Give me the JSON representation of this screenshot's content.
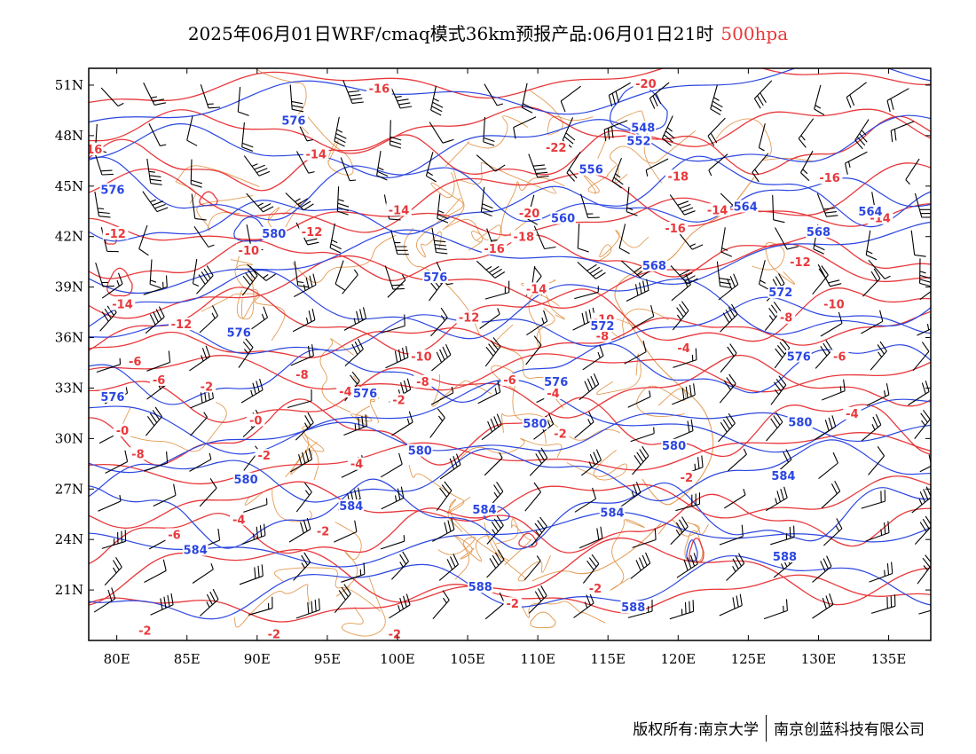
{
  "title": {
    "main": "2025年06月01日WRF/cmaq模式36km预报产品:06月01日21时",
    "level": "500hpa",
    "level_color": "#e8383b"
  },
  "footer": {
    "left": "版权所有:南京大学",
    "right": "南京创蓝科技有限公司"
  },
  "colors": {
    "height_contour": "#2b46e0",
    "temperature_contour": "#e8383b",
    "boundaries": "#e39b54",
    "wind_barbs": "#000000"
  },
  "map": {
    "lon_range": [
      78,
      138
    ],
    "lat_range": [
      18,
      52
    ],
    "lon_ticks": [
      "80E",
      "85E",
      "90E",
      "95E",
      "100E",
      "105E",
      "110E",
      "115E",
      "120E",
      "125E",
      "130E",
      "135E"
    ],
    "lon_values": [
      80,
      85,
      90,
      95,
      100,
      105,
      110,
      115,
      120,
      125,
      130,
      135
    ],
    "lat_ticks": [
      "21N",
      "24N",
      "27N",
      "30N",
      "33N",
      "36N",
      "39N",
      "42N",
      "45N",
      "48N",
      "51N"
    ],
    "lat_values": [
      21,
      24,
      27,
      30,
      33,
      36,
      39,
      42,
      45,
      48,
      51
    ]
  },
  "height_labels": [
    {
      "text": "548",
      "lon": 117.5,
      "lat": 48.4
    },
    {
      "text": "552",
      "lon": 117.2,
      "lat": 47.6
    },
    {
      "text": "556",
      "lon": 113.8,
      "lat": 45.9
    },
    {
      "text": "560",
      "lon": 111.8,
      "lat": 43.0
    },
    {
      "text": "564",
      "lon": 124.8,
      "lat": 43.7
    },
    {
      "text": "564",
      "lon": 133.7,
      "lat": 43.4
    },
    {
      "text": "568",
      "lon": 118.3,
      "lat": 40.2
    },
    {
      "text": "568",
      "lon": 130.0,
      "lat": 42.2
    },
    {
      "text": "572",
      "lon": 127.3,
      "lat": 38.6
    },
    {
      "text": "572",
      "lon": 114.6,
      "lat": 36.6
    },
    {
      "text": "576",
      "lon": 92.6,
      "lat": 48.8
    },
    {
      "text": "576",
      "lon": 79.7,
      "lat": 44.7
    },
    {
      "text": "576",
      "lon": 102.7,
      "lat": 39.5
    },
    {
      "text": "576",
      "lon": 88.7,
      "lat": 36.2
    },
    {
      "text": "576",
      "lon": 79.7,
      "lat": 32.4
    },
    {
      "text": "576",
      "lon": 97.7,
      "lat": 32.6
    },
    {
      "text": "576",
      "lon": 111.3,
      "lat": 33.3
    },
    {
      "text": "576",
      "lon": 128.6,
      "lat": 34.8
    },
    {
      "text": "580",
      "lon": 91.2,
      "lat": 42.1
    },
    {
      "text": "580",
      "lon": 109.8,
      "lat": 30.8
    },
    {
      "text": "580",
      "lon": 101.6,
      "lat": 29.2
    },
    {
      "text": "580",
      "lon": 119.7,
      "lat": 29.5
    },
    {
      "text": "580",
      "lon": 128.7,
      "lat": 30.9
    },
    {
      "text": "580",
      "lon": 89.2,
      "lat": 27.5
    },
    {
      "text": "584",
      "lon": 96.7,
      "lat": 25.9
    },
    {
      "text": "584",
      "lon": 106.2,
      "lat": 25.7
    },
    {
      "text": "584",
      "lon": 115.3,
      "lat": 25.5
    },
    {
      "text": "584",
      "lon": 127.5,
      "lat": 27.7
    },
    {
      "text": "584",
      "lon": 85.6,
      "lat": 23.3
    },
    {
      "text": "588",
      "lon": 105.9,
      "lat": 21.1
    },
    {
      "text": "588",
      "lon": 127.6,
      "lat": 22.9
    },
    {
      "text": "588",
      "lon": 116.8,
      "lat": 19.9
    }
  ],
  "temperature_labels": [
    {
      "text": "-16",
      "lon": 98.7,
      "lat": 50.7
    },
    {
      "text": "-20",
      "lon": 117.7,
      "lat": 51.0
    },
    {
      "text": "-22",
      "lon": 111.3,
      "lat": 47.2
    },
    {
      "text": "16",
      "lon": 78.4,
      "lat": 47.1
    },
    {
      "text": "-14",
      "lon": 94.2,
      "lat": 46.8
    },
    {
      "text": "-18",
      "lon": 120.0,
      "lat": 45.5
    },
    {
      "text": "-16",
      "lon": 130.8,
      "lat": 45.4
    },
    {
      "text": "-14",
      "lon": 100.1,
      "lat": 43.5
    },
    {
      "text": "-20",
      "lon": 109.4,
      "lat": 43.3
    },
    {
      "text": "-14",
      "lon": 122.8,
      "lat": 43.5
    },
    {
      "text": "-14",
      "lon": 134.4,
      "lat": 43.0
    },
    {
      "text": "-12",
      "lon": 79.9,
      "lat": 42.1
    },
    {
      "text": "-12",
      "lon": 93.9,
      "lat": 42.2
    },
    {
      "text": "-18",
      "lon": 109.0,
      "lat": 41.9
    },
    {
      "text": "-16",
      "lon": 119.8,
      "lat": 42.4
    },
    {
      "text": "-10",
      "lon": 89.4,
      "lat": 41.1
    },
    {
      "text": "-16",
      "lon": 106.9,
      "lat": 41.2
    },
    {
      "text": "-12",
      "lon": 128.7,
      "lat": 40.4
    },
    {
      "text": "-14",
      "lon": 109.9,
      "lat": 38.8
    },
    {
      "text": "-14",
      "lon": 80.4,
      "lat": 37.9
    },
    {
      "text": "-12",
      "lon": 105.1,
      "lat": 37.1
    },
    {
      "text": "-10",
      "lon": 114.7,
      "lat": 37.0
    },
    {
      "text": "-10",
      "lon": 131.1,
      "lat": 37.9
    },
    {
      "text": "-8",
      "lon": 114.6,
      "lat": 36.0
    },
    {
      "text": "-8",
      "lon": 127.7,
      "lat": 37.1
    },
    {
      "text": "-12",
      "lon": 84.6,
      "lat": 36.7
    },
    {
      "text": "-4",
      "lon": 120.4,
      "lat": 35.3
    },
    {
      "text": "-6",
      "lon": 131.5,
      "lat": 34.8
    },
    {
      "text": "-10",
      "lon": 101.7,
      "lat": 34.8
    },
    {
      "text": "-6",
      "lon": 81.3,
      "lat": 34.5
    },
    {
      "text": "-6",
      "lon": 83.0,
      "lat": 33.4
    },
    {
      "text": "-8",
      "lon": 93.2,
      "lat": 33.7
    },
    {
      "text": "-8",
      "lon": 101.8,
      "lat": 33.3
    },
    {
      "text": "-6",
      "lon": 108.0,
      "lat": 33.4
    },
    {
      "text": "-2",
      "lon": 86.4,
      "lat": 33.0
    },
    {
      "text": "-4",
      "lon": 96.3,
      "lat": 32.7
    },
    {
      "text": "-2",
      "lon": 100.1,
      "lat": 32.2
    },
    {
      "text": "-4",
      "lon": 111.1,
      "lat": 32.6
    },
    {
      "text": "-4",
      "lon": 132.4,
      "lat": 31.4
    },
    {
      "text": "-0",
      "lon": 89.9,
      "lat": 31.0
    },
    {
      "text": "-2",
      "lon": 111.6,
      "lat": 30.2
    },
    {
      "text": "-0",
      "lon": 80.4,
      "lat": 30.4
    },
    {
      "text": "-8",
      "lon": 81.5,
      "lat": 29.0
    },
    {
      "text": "-2",
      "lon": 90.5,
      "lat": 28.9
    },
    {
      "text": "-4",
      "lon": 97.1,
      "lat": 28.4
    },
    {
      "text": "-2",
      "lon": 120.6,
      "lat": 27.6
    },
    {
      "text": "-4",
      "lon": 88.7,
      "lat": 25.1
    },
    {
      "text": "-2",
      "lon": 94.7,
      "lat": 24.4
    },
    {
      "text": "-6",
      "lon": 84.1,
      "lat": 24.2
    },
    {
      "text": "-2",
      "lon": 114.1,
      "lat": 21.0
    },
    {
      "text": "-2",
      "lon": 108.2,
      "lat": 20.1
    },
    {
      "text": "-2",
      "lon": 82.0,
      "lat": 18.5
    },
    {
      "text": "-2",
      "lon": 91.2,
      "lat": 18.3
    },
    {
      "text": "-2",
      "lon": 99.8,
      "lat": 18.3
    }
  ]
}
